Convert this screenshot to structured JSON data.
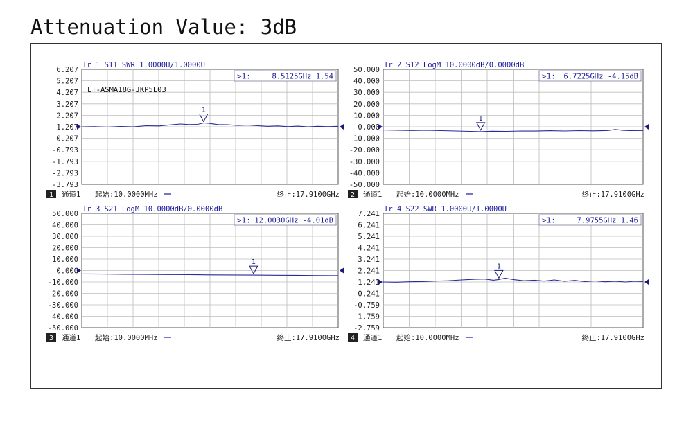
{
  "title": "Attenuation Value: 3dB",
  "colors": {
    "trace": "#2a2a9a",
    "header": "#1a1aa0",
    "grid": "#bdbdbd",
    "marker_box_border": "#7a7aa0",
    "badge": "#222222"
  },
  "chart_data": [
    {
      "type": "line",
      "trace_label": "Tr 1  S11 SWR 1.0000U/1.0000U",
      "marker_readout": {
        "label": ">1:",
        "value": "8.5125GHz 1.54"
      },
      "annotation": "LT-ASMA18G-JKP5L03",
      "y_ticks": [
        "6.207",
        "5.207",
        "4.207",
        "3.207",
        "2.207",
        "1.207",
        "0.207",
        "-0.793",
        "-1.793",
        "-2.793",
        "-3.793"
      ],
      "ylim": [
        -3.793,
        6.207
      ],
      "reference_value": 1.207,
      "xlim": [
        0.01,
        17.91
      ],
      "x_unit": "GHz",
      "marker": {
        "name": "1",
        "x": 8.5125,
        "y": 1.54
      },
      "trace_x": [
        0.01,
        0.9,
        1.8,
        2.7,
        3.6,
        4.5,
        5.4,
        6.3,
        6.9,
        7.5,
        8.1,
        8.5125,
        8.9,
        9.5,
        10.2,
        10.9,
        11.6,
        12.3,
        13.0,
        13.7,
        14.4,
        15.1,
        15.8,
        16.5,
        17.2,
        17.91
      ],
      "trace_y": [
        1.2,
        1.22,
        1.18,
        1.24,
        1.2,
        1.3,
        1.28,
        1.38,
        1.45,
        1.4,
        1.42,
        1.54,
        1.5,
        1.4,
        1.38,
        1.32,
        1.35,
        1.3,
        1.25,
        1.28,
        1.22,
        1.26,
        1.2,
        1.25,
        1.22,
        1.25
      ],
      "footer": {
        "channel_num": "1",
        "channel": "通道1",
        "start": "起始:10.0000MHz",
        "stop": "终止:17.9100GHz"
      }
    },
    {
      "type": "line",
      "trace_label": "Tr 2  S12 LogM 10.0000dB/0.0000dB",
      "marker_readout": {
        "label": ">1:",
        "value": "6.7225GHz -4.15dB"
      },
      "annotation": "",
      "y_ticks": [
        "50.000",
        "40.000",
        "30.000",
        "20.000",
        "10.000",
        "0.000",
        "-10.000",
        "-20.000",
        "-30.000",
        "-40.000",
        "-50.000"
      ],
      "ylim": [
        -50,
        50
      ],
      "reference_value": 0,
      "xlim": [
        0.01,
        17.91
      ],
      "x_unit": "GHz",
      "marker": {
        "name": "1",
        "x": 6.7225,
        "y": -4.15
      },
      "trace_x": [
        0.01,
        1.0,
        2.0,
        3.0,
        4.0,
        5.0,
        6.0,
        6.7225,
        7.5,
        8.5,
        9.5,
        10.5,
        11.5,
        12.5,
        13.5,
        14.5,
        15.5,
        16.0,
        16.5,
        17.0,
        17.91
      ],
      "trace_y": [
        -2.8,
        -3.0,
        -3.2,
        -3.0,
        -3.3,
        -3.6,
        -3.9,
        -4.15,
        -3.8,
        -3.9,
        -3.6,
        -3.7,
        -3.4,
        -3.6,
        -3.3,
        -3.5,
        -3.2,
        -2.3,
        -3.1,
        -3.3,
        -3.2
      ],
      "footer": {
        "channel_num": "2",
        "channel": "通道1",
        "start": "起始:10.0000MHz",
        "stop": "终止:17.9100GHz"
      }
    },
    {
      "type": "line",
      "trace_label": "Tr 3  S21 LogM 10.0000dB/0.0000dB",
      "marker_readout": {
        "label": ">1:",
        "value": "12.0030GHz -4.01dB"
      },
      "annotation": "",
      "y_ticks": [
        "50.000",
        "40.000",
        "30.000",
        "20.000",
        "10.000",
        "0.000",
        "-10.000",
        "-20.000",
        "-30.000",
        "-40.000",
        "-50.000"
      ],
      "ylim": [
        -50,
        50
      ],
      "reference_value": 0,
      "xlim": [
        0.01,
        17.91
      ],
      "x_unit": "GHz",
      "marker": {
        "name": "1",
        "x": 12.003,
        "y": -4.01
      },
      "trace_x": [
        0.01,
        1.5,
        3.0,
        4.5,
        6.0,
        7.5,
        9.0,
        10.5,
        12.003,
        13.5,
        15.0,
        16.5,
        17.91
      ],
      "trace_y": [
        -3.0,
        -3.1,
        -3.3,
        -3.4,
        -3.5,
        -3.6,
        -3.8,
        -3.9,
        -4.01,
        -4.1,
        -4.2,
        -4.4,
        -4.5
      ],
      "footer": {
        "channel_num": "3",
        "channel": "通道1",
        "start": "起始:10.0000MHz",
        "stop": "终止:17.9100GHz"
      }
    },
    {
      "type": "line",
      "trace_label": "Tr 4  S22 SWR 1.0000U/1.0000U",
      "marker_readout": {
        "label": ">1:",
        "value": "7.9755GHz 1.46"
      },
      "annotation": "",
      "y_ticks": [
        "7.241",
        "6.241",
        "5.241",
        "4.241",
        "3.241",
        "2.241",
        "1.241",
        "0.241",
        "-0.759",
        "-1.759",
        "-2.759"
      ],
      "ylim": [
        -2.759,
        7.241
      ],
      "reference_value": 1.241,
      "xlim": [
        0.01,
        17.91
      ],
      "x_unit": "GHz",
      "marker": {
        "name": "1",
        "x": 7.9755,
        "y": 1.46
      },
      "trace_x": [
        0.01,
        0.9,
        1.8,
        2.7,
        3.6,
        4.5,
        5.4,
        6.3,
        7.0,
        7.6,
        7.9755,
        8.4,
        9.0,
        9.7,
        10.4,
        11.1,
        11.8,
        12.5,
        13.2,
        13.9,
        14.6,
        15.3,
        16.0,
        16.7,
        17.3,
        17.91
      ],
      "trace_y": [
        1.24,
        1.22,
        1.26,
        1.28,
        1.32,
        1.35,
        1.42,
        1.48,
        1.5,
        1.4,
        1.46,
        1.58,
        1.45,
        1.35,
        1.4,
        1.32,
        1.42,
        1.3,
        1.38,
        1.28,
        1.34,
        1.26,
        1.3,
        1.24,
        1.3,
        1.28
      ],
      "footer": {
        "channel_num": "4",
        "channel": "通道1",
        "start": "起始:10.0000MHz",
        "stop": "终止:17.9100GHz"
      }
    }
  ]
}
